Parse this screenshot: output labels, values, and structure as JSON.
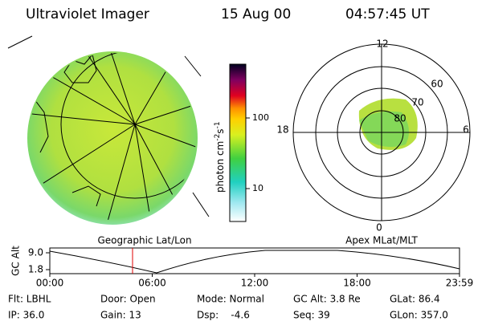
{
  "header": {
    "title": "Ultraviolet Imager",
    "date": "15 Aug 00",
    "time": "04:57:45 UT"
  },
  "colorbar": {
    "ticks": [
      "100",
      "10"
    ],
    "unit": {
      "base": "photon cm",
      "exp1": "-2",
      "mid": "s",
      "exp2": "-1"
    }
  },
  "polar": {
    "mlt_labels": [
      "12",
      "18",
      "6",
      "0"
    ],
    "lat_labels": [
      "60",
      "70",
      "80"
    ]
  },
  "panel_labels": {
    "left": "Geographic Lat/Lon",
    "right": "Apex MLat/MLT"
  },
  "altitude": {
    "axis_label": "GC Alt",
    "ticks": [
      "9.0",
      "1.8"
    ],
    "times": [
      "00:00",
      "06:00",
      "12:00",
      "18:00",
      "23:59"
    ]
  },
  "footer": {
    "rows": [
      [
        "Flt: LBHL",
        "Door: Open",
        "Mode: Normal",
        "GC Alt: 3.8 Re",
        "GLat: 86.4"
      ],
      [
        "IP: 36.0",
        "Gain: 13",
        "Dsp:    -4.6",
        "Seq: 39",
        "GLon: 357.0"
      ]
    ]
  }
}
